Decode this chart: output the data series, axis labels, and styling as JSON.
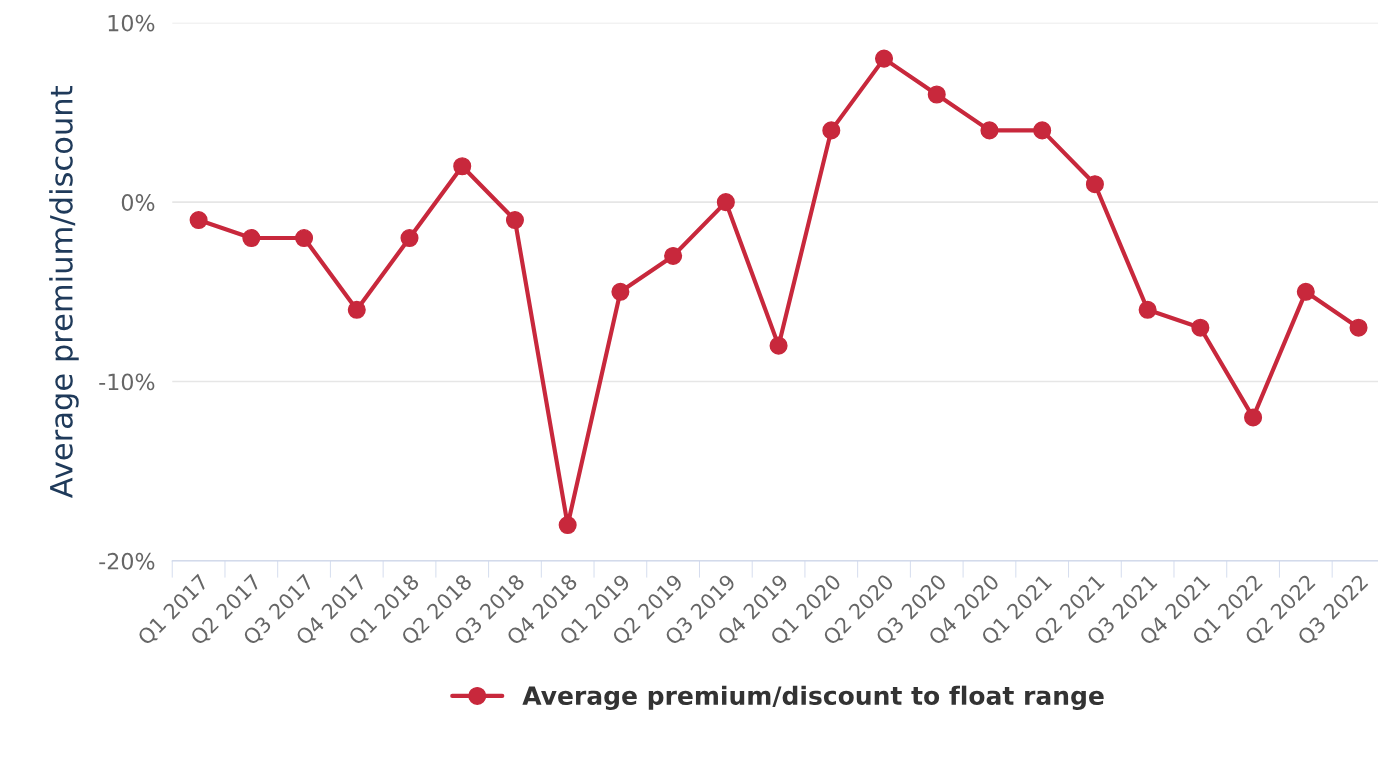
{
  "chart_data": {
    "type": "line",
    "ylabel": "Average premium/discount",
    "categories": [
      "Q1 2017",
      "Q2 2017",
      "Q3 2017",
      "Q4 2017",
      "Q1 2018",
      "Q2 2018",
      "Q3 2018",
      "Q4 2018",
      "Q1 2019",
      "Q2 2019",
      "Q3 2019",
      "Q4 2019",
      "Q1 2020",
      "Q2 2020",
      "Q3 2020",
      "Q4 2020",
      "Q1 2021",
      "Q2 2021",
      "Q3 2021",
      "Q4 2021",
      "Q1 2022",
      "Q2 2022",
      "Q3 2022"
    ],
    "series": [
      {
        "name": "Average premium/discount to float range",
        "color": "#c8283c",
        "values": [
          -1,
          -2,
          -2,
          -6,
          -2,
          2,
          -1,
          -18,
          -5,
          -3,
          0,
          -8,
          4,
          8,
          6,
          4,
          4,
          1,
          -6,
          -7,
          -12,
          -5,
          -7
        ]
      }
    ],
    "ylim": [
      -20,
      10
    ],
    "yticks": [
      {
        "value": -20,
        "label": "-20%"
      },
      {
        "value": -10,
        "label": "-10%"
      },
      {
        "value": 0,
        "label": "0%"
      },
      {
        "value": 10,
        "label": "10%"
      }
    ],
    "grid": "y",
    "legend": "bottom",
    "marker": "circle",
    "line_style": "solid"
  }
}
